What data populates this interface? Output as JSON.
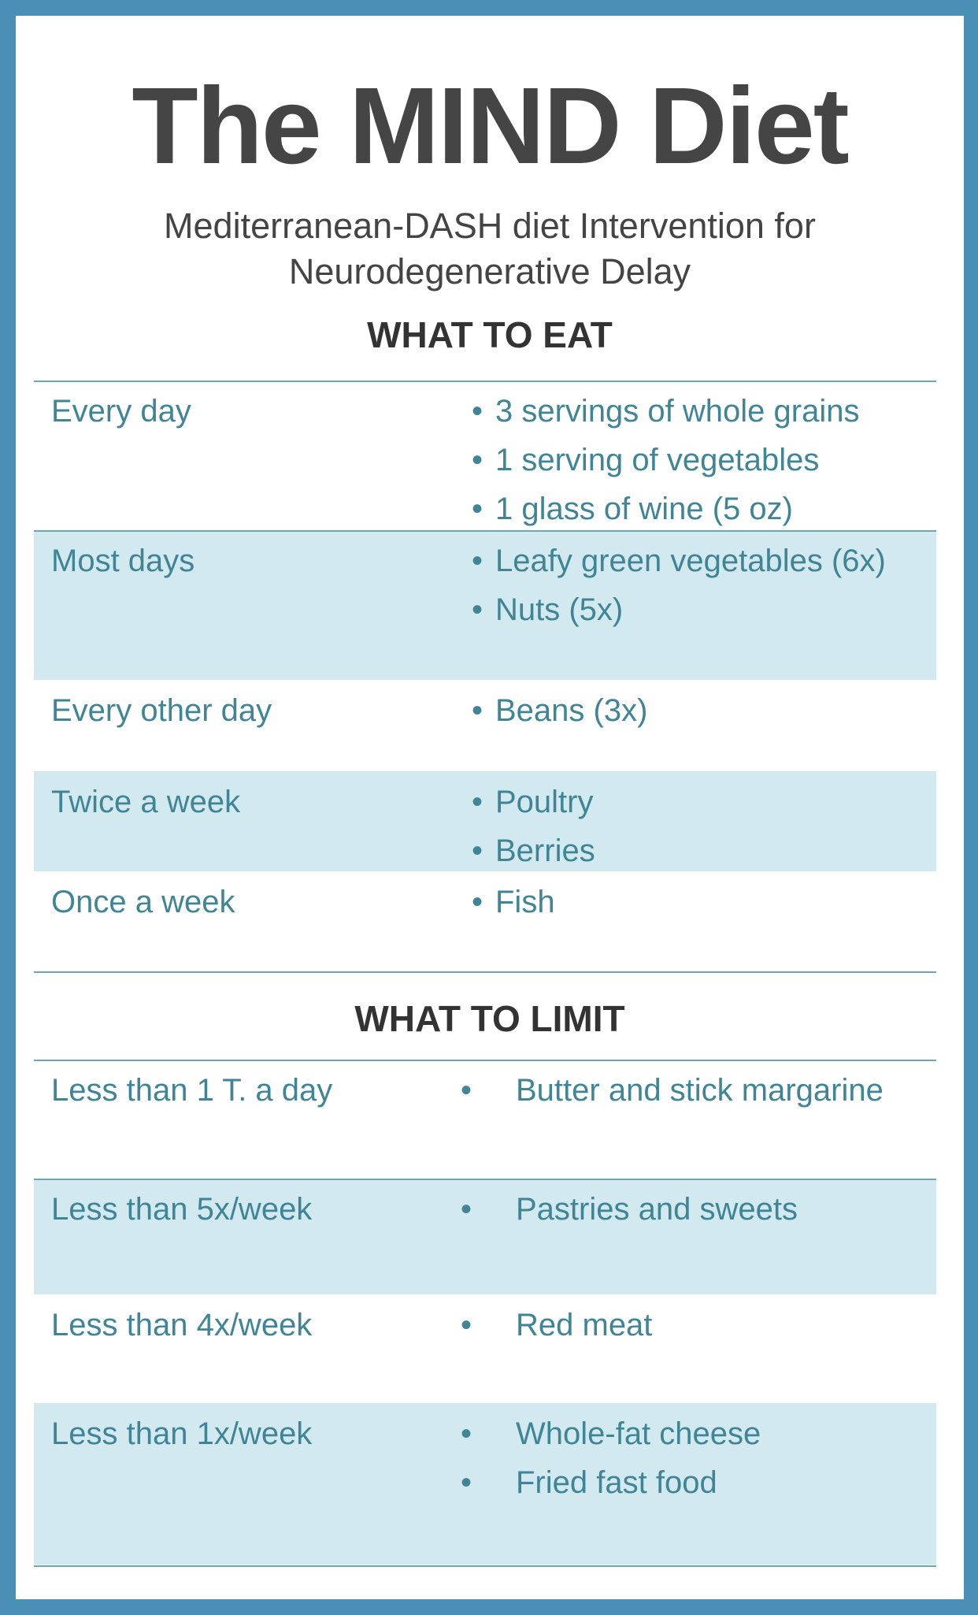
{
  "title": "The MIND Diet",
  "subtitle_lines": [
    "Mediterranean-DASH diet Intervention for",
    "Neurodegenerative Delay"
  ],
  "colors": {
    "border": "#4a90b6",
    "row_shade": "#d3e9f0",
    "text": "#3f8596",
    "rule": "#6aa9b4"
  },
  "eat": {
    "heading": "WHAT TO EAT",
    "rows": [
      {
        "label": "Every day",
        "items": [
          "3 servings of whole grains",
          "1 serving of vegetables",
          "1 glass of wine (5 oz)"
        ]
      },
      {
        "label": "Most days",
        "items": [
          "Leafy green vegetables (6x)",
          "Nuts (5x)"
        ]
      },
      {
        "label": "Every other day",
        "items": [
          "Beans (3x)"
        ]
      },
      {
        "label": "Twice a week",
        "items": [
          "Poultry",
          "Berries"
        ]
      },
      {
        "label": "Once a week",
        "items": [
          "Fish"
        ]
      }
    ]
  },
  "limit": {
    "heading": "WHAT TO LIMIT",
    "rows": [
      {
        "label": "Less than 1 T. a day",
        "items": [
          "Butter and stick margarine"
        ]
      },
      {
        "label": "Less than 5x/week",
        "items": [
          "Pastries and sweets"
        ]
      },
      {
        "label": "Less than 4x/week",
        "items": [
          "Red meat"
        ]
      },
      {
        "label": "Less than 1x/week",
        "items": [
          "Whole-fat cheese",
          "Fried fast food"
        ]
      }
    ]
  }
}
